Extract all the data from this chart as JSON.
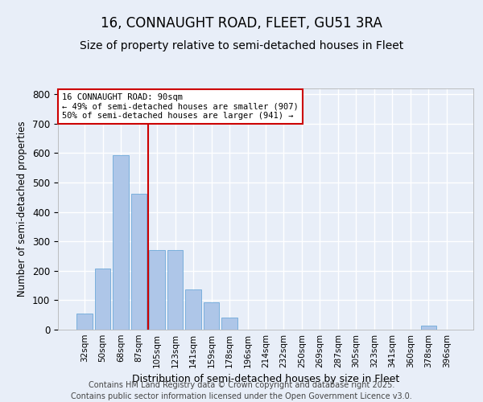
{
  "title": "16, CONNAUGHT ROAD, FLEET, GU51 3RA",
  "subtitle": "Size of property relative to semi-detached houses in Fleet",
  "xlabel": "Distribution of semi-detached houses by size in Fleet",
  "ylabel": "Number of semi-detached properties",
  "categories": [
    "32sqm",
    "50sqm",
    "68sqm",
    "87sqm",
    "105sqm",
    "123sqm",
    "141sqm",
    "159sqm",
    "178sqm",
    "196sqm",
    "214sqm",
    "232sqm",
    "250sqm",
    "269sqm",
    "287sqm",
    "305sqm",
    "323sqm",
    "341sqm",
    "360sqm",
    "378sqm",
    "396sqm"
  ],
  "values": [
    55,
    208,
    592,
    462,
    270,
    270,
    138,
    92,
    42,
    0,
    0,
    0,
    0,
    0,
    0,
    0,
    0,
    0,
    0,
    15,
    0
  ],
  "bar_color": "#aec6e8",
  "bar_edge_color": "#5a9fd4",
  "background_color": "#e8eef8",
  "grid_color": "#ffffff",
  "red_line_x": 3.5,
  "annotation_text_line1": "16 CONNAUGHT ROAD: 90sqm",
  "annotation_text_line2": "← 49% of semi-detached houses are smaller (907)",
  "annotation_text_line3": "50% of semi-detached houses are larger (941) →",
  "annotation_box_color": "#ffffff",
  "annotation_box_edge_color": "#cc0000",
  "red_line_color": "#cc0000",
  "ylim": [
    0,
    820
  ],
  "yticks": [
    0,
    100,
    200,
    300,
    400,
    500,
    600,
    700,
    800
  ],
  "title_fontsize": 12,
  "subtitle_fontsize": 10,
  "footer_fontsize": 7,
  "footer_line1": "Contains HM Land Registry data © Crown copyright and database right 2025.",
  "footer_line2": "Contains public sector information licensed under the Open Government Licence v3.0."
}
